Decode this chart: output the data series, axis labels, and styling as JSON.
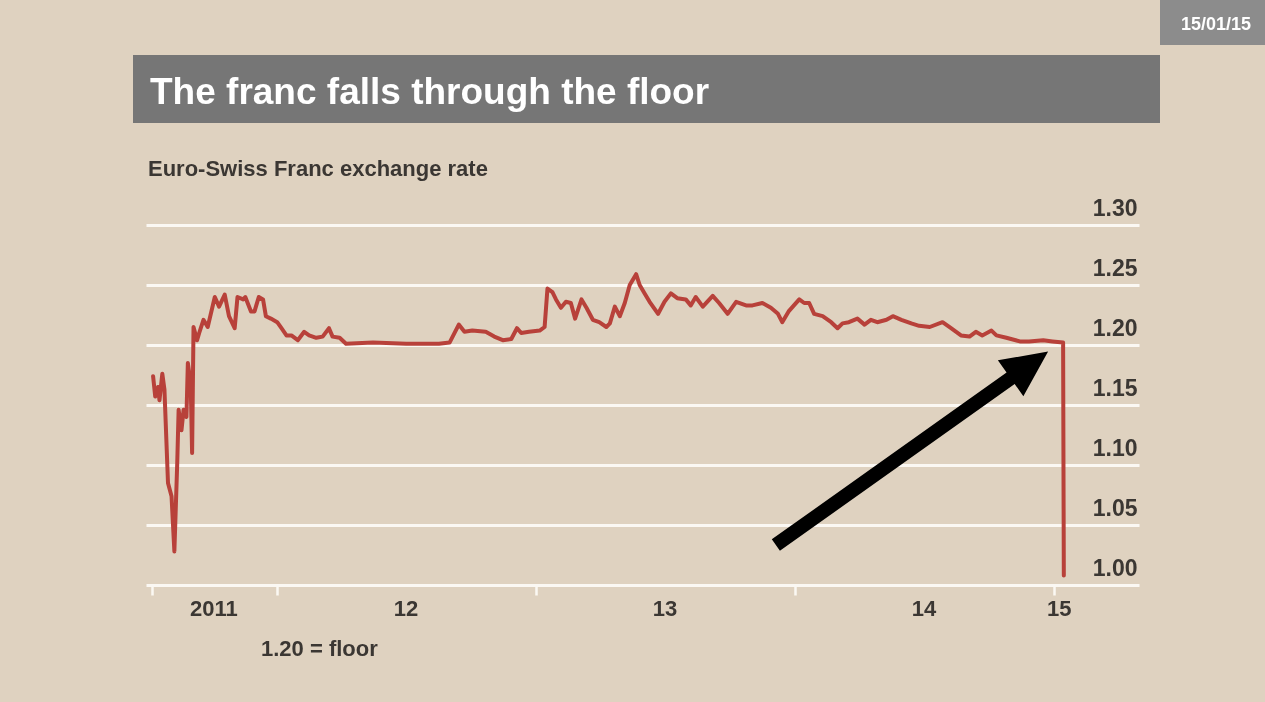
{
  "chart_data": {
    "type": "line",
    "title": "The franc falls through the floor",
    "subtitle": "Euro-Swiss Franc exchange rate",
    "annotations": [
      "15/01/15",
      "1.20 = floor"
    ],
    "x": [
      "2011-07-11",
      "2011-07-14",
      "2011-07-18",
      "2011-07-20",
      "2011-07-24",
      "2011-07-27",
      "2011-08-01",
      "2011-08-06",
      "2011-08-10",
      "2011-08-14",
      "2011-08-16",
      "2011-08-20",
      "2011-08-23",
      "2011-08-27",
      "2011-08-29",
      "2011-09-02",
      "2011-09-04",
      "2011-09-06",
      "2011-09-11",
      "2011-09-14",
      "2011-09-20",
      "2011-09-26",
      "2011-10-06",
      "2011-10-12",
      "2011-10-20",
      "2011-10-26",
      "2011-11-03",
      "2011-11-07",
      "2011-11-15",
      "2011-11-18",
      "2011-11-26",
      "2011-12-01",
      "2011-12-07",
      "2011-12-13",
      "2011-12-17",
      "2011-12-24",
      "2012-01-02",
      "2012-01-08",
      "2012-01-15",
      "2012-01-22",
      "2012-01-31",
      "2012-02-09",
      "2012-02-16",
      "2012-02-26",
      "2012-03-06",
      "2012-03-15",
      "2012-03-20",
      "2012-03-30",
      "2012-04-08",
      "2012-05-16",
      "2012-07-02",
      "2012-08-17",
      "2012-09-01",
      "2012-09-14",
      "2012-09-22",
      "2012-10-03",
      "2012-10-22",
      "2012-11-03",
      "2012-11-15",
      "2012-11-27",
      "2012-12-05",
      "2012-12-11",
      "2012-12-22",
      "2013-01-06",
      "2013-01-13",
      "2013-01-17",
      "2013-01-24",
      "2013-01-29",
      "2013-02-05",
      "2013-02-12",
      "2013-02-19",
      "2013-02-25",
      "2013-03-06",
      "2013-03-13",
      "2013-03-22",
      "2013-03-31",
      "2013-04-10",
      "2013-04-15",
      "2013-04-22",
      "2013-04-29",
      "2013-05-06",
      "2013-05-13",
      "2013-05-22",
      "2013-05-27",
      "2013-06-03",
      "2013-06-10",
      "2013-06-22",
      "2013-07-01",
      "2013-07-10",
      "2013-07-19",
      "2013-07-31",
      "2013-08-07",
      "2013-08-14",
      "2013-08-24",
      "2013-09-07",
      "2013-09-16",
      "2013-09-28",
      "2013-10-10",
      "2013-10-24",
      "2013-11-02",
      "2013-11-16",
      "2013-11-28",
      "2013-12-08",
      "2013-12-14",
      "2013-12-23",
      "2014-01-07",
      "2014-01-14",
      "2014-01-21",
      "2014-01-28",
      "2014-02-09",
      "2014-02-21",
      "2014-03-02",
      "2014-03-09",
      "2014-03-18",
      "2014-03-30",
      "2014-04-09",
      "2014-04-18",
      "2014-04-27",
      "2014-05-10",
      "2014-05-19",
      "2014-05-31",
      "2014-06-14",
      "2014-06-25",
      "2014-07-10",
      "2014-07-28",
      "2014-08-09",
      "2014-08-23",
      "2014-09-04",
      "2014-09-13",
      "2014-09-22",
      "2014-10-05",
      "2014-10-12",
      "2014-10-26",
      "2014-11-14",
      "2014-11-27",
      "2014-12-17",
      "2014-12-30",
      "2015-01-14",
      "2015-01-15"
    ],
    "series": [
      {
        "color": "#b8413a",
        "values": [
          1.174,
          1.157,
          1.165,
          1.154,
          1.176,
          1.163,
          1.085,
          1.074,
          1.028,
          1.101,
          1.146,
          1.129,
          1.146,
          1.14,
          1.185,
          1.168,
          1.11,
          1.215,
          1.204,
          1.21,
          1.221,
          1.215,
          1.24,
          1.232,
          1.242,
          1.224,
          1.214,
          1.24,
          1.238,
          1.24,
          1.228,
          1.228,
          1.24,
          1.238,
          1.224,
          1.222,
          1.219,
          1.214,
          1.208,
          1.208,
          1.204,
          1.211,
          1.208,
          1.206,
          1.207,
          1.214,
          1.207,
          1.206,
          1.201,
          1.202,
          1.201,
          1.201,
          1.202,
          1.217,
          1.211,
          1.212,
          1.211,
          1.207,
          1.204,
          1.205,
          1.214,
          1.21,
          1.211,
          1.212,
          1.215,
          1.247,
          1.244,
          1.238,
          1.231,
          1.236,
          1.235,
          1.222,
          1.238,
          1.231,
          1.221,
          1.219,
          1.215,
          1.218,
          1.232,
          1.224,
          1.235,
          1.25,
          1.259,
          1.25,
          1.243,
          1.236,
          1.226,
          1.236,
          1.243,
          1.239,
          1.238,
          1.233,
          1.24,
          1.232,
          1.241,
          1.235,
          1.226,
          1.236,
          1.233,
          1.233,
          1.235,
          1.231,
          1.226,
          1.219,
          1.228,
          1.238,
          1.235,
          1.235,
          1.226,
          1.224,
          1.219,
          1.214,
          1.218,
          1.219,
          1.222,
          1.217,
          1.221,
          1.219,
          1.221,
          1.224,
          1.221,
          1.218,
          1.216,
          1.215,
          1.219,
          1.214,
          1.208,
          1.207,
          1.211,
          1.208,
          1.212,
          1.208,
          1.206,
          1.203,
          1.203,
          1.204,
          1.203,
          1.202,
          1.008
        ]
      }
    ],
    "xlim": [
      "2011-07-01",
      "2015-05-01"
    ],
    "xticks": [
      {
        "value": "2011-07-10",
        "label": null
      },
      {
        "value": "2011-10-04",
        "label": "2011"
      },
      {
        "value": "2012-01-01",
        "label": null
      },
      {
        "value": "2012-07-01",
        "label": "12"
      },
      {
        "value": "2013-01-01",
        "label": null
      },
      {
        "value": "2013-07-01",
        "label": "13"
      },
      {
        "value": "2014-01-01",
        "label": null
      },
      {
        "value": "2014-07-01",
        "label": "14"
      },
      {
        "value": "2015-01-01",
        "label": null
      },
      {
        "value": "2015-01-08",
        "label": "15"
      }
    ],
    "ylim": [
      1.0,
      1.3
    ],
    "yticks": [
      {
        "value": 1.0,
        "label": "1.00"
      },
      1.05,
      {
        "value": 1.1,
        "label": "1.10"
      },
      1.15,
      {
        "value": 1.2,
        "label": "1.20"
      },
      1.25,
      {
        "value": 1.3,
        "label": "1.30"
      }
    ],
    "grid": "y"
  }
}
